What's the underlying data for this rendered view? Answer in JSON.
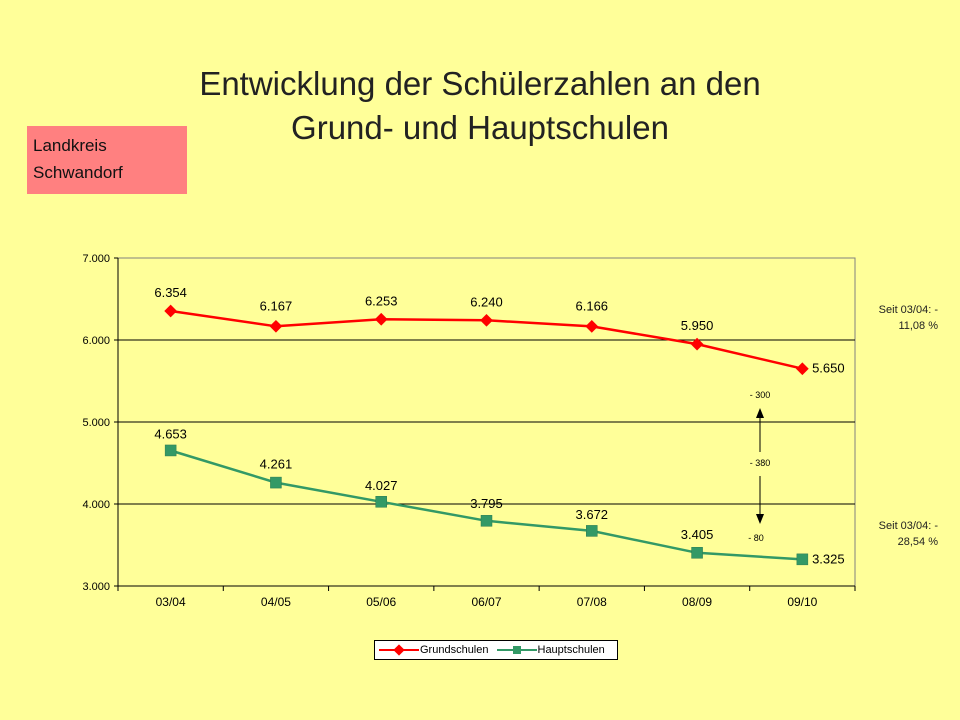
{
  "title": {
    "line1": "Entwicklung der Schülerzahlen an den",
    "line2": "Grund- und Hauptschulen"
  },
  "region": {
    "line1": "Landkreis",
    "line2": "Schwandorf"
  },
  "notes": {
    "grundschulen": "Seit 03/04: - 11,08 %",
    "hauptschulen": "Seit 03/04: - 28,54 %"
  },
  "annotations": {
    "top": "- 300",
    "middle": "- 380",
    "bottom": "- 80"
  },
  "colors": {
    "background": "#ffff99",
    "grundschulen": "#ff0000",
    "hauptschulen": "#339966",
    "region_box": "#ff8080"
  },
  "chart_data": {
    "type": "line",
    "categories": [
      "03/04",
      "04/05",
      "05/06",
      "06/07",
      "07/08",
      "08/09",
      "09/10"
    ],
    "series": [
      {
        "name": "Grundschulen",
        "values": [
          6354,
          6167,
          6253,
          6240,
          6166,
          5950,
          5650
        ],
        "labels": [
          "6.354",
          "6.167",
          "6.253",
          "6.240",
          "6.166",
          "5.950",
          "5.650"
        ]
      },
      {
        "name": "Hauptschulen",
        "values": [
          4653,
          4261,
          4027,
          3795,
          3672,
          3405,
          3325
        ],
        "labels": [
          "4.653",
          "4.261",
          "4.027",
          "3.795",
          "3.672",
          "3.405",
          "3.325"
        ]
      }
    ],
    "ylim": [
      3000,
      7000
    ],
    "yticks": [
      3000,
      4000,
      5000,
      6000,
      7000
    ],
    "ytick_labels": [
      "3.000",
      "4.000",
      "5.000",
      "6.000",
      "7.000"
    ],
    "grid": true,
    "legend": "bottom"
  }
}
